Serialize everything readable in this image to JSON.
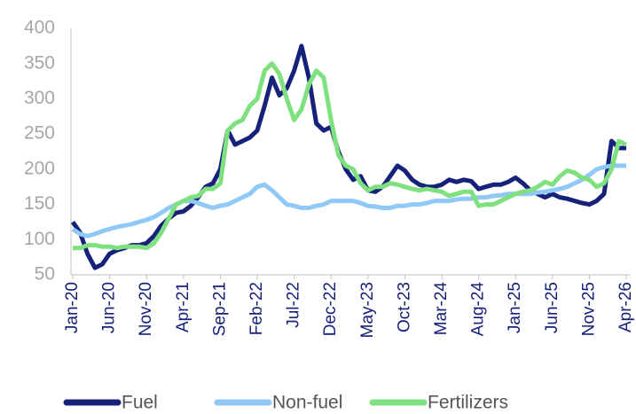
{
  "chart_data": {
    "type": "line",
    "categories": [
      "Jan-20",
      null,
      null,
      null,
      null,
      "Jun-20",
      null,
      null,
      null,
      null,
      "Nov-20",
      null,
      null,
      null,
      null,
      "Apr-21",
      null,
      null,
      null,
      null,
      "Sep-21",
      null,
      null,
      null,
      null,
      "Feb-22",
      null,
      null,
      null,
      null,
      "Jul-22",
      null,
      null,
      null,
      null,
      "Dec-22",
      null,
      null,
      null,
      null,
      "May-23",
      null,
      null,
      null,
      null,
      "Oct-23",
      null,
      null,
      null,
      null,
      "Mar-24",
      null,
      null,
      null,
      null,
      "Aug-24",
      null,
      null,
      null,
      null,
      "Jan-25",
      null,
      null,
      null,
      null,
      "Jun-25",
      null,
      null,
      null,
      null,
      "Nov-25",
      null,
      null,
      null,
      null,
      "Apr-26"
    ],
    "series": [
      {
        "name": "Fuel",
        "color": "#16217a",
        "values": [
          125,
          110,
          80,
          60,
          65,
          80,
          85,
          88,
          92,
          92,
          95,
          105,
          120,
          130,
          138,
          140,
          148,
          160,
          175,
          180,
          200,
          255,
          235,
          240,
          245,
          255,
          290,
          330,
          305,
          315,
          340,
          375,
          330,
          265,
          255,
          260,
          225,
          200,
          185,
          190,
          170,
          168,
          175,
          190,
          205,
          198,
          185,
          178,
          175,
          175,
          178,
          185,
          182,
          185,
          183,
          172,
          175,
          178,
          178,
          182,
          188,
          180,
          170,
          165,
          160,
          165,
          160,
          158,
          155,
          152,
          150,
          155,
          165,
          240,
          230,
          230
        ]
      },
      {
        "name": "Non-fuel",
        "color": "#90c8f6",
        "values": [
          115,
          108,
          105,
          108,
          112,
          115,
          118,
          120,
          122,
          125,
          128,
          132,
          138,
          145,
          150,
          155,
          155,
          152,
          148,
          145,
          148,
          150,
          155,
          160,
          165,
          175,
          178,
          170,
          160,
          150,
          148,
          145,
          145,
          148,
          150,
          155,
          155,
          155,
          155,
          152,
          148,
          147,
          145,
          145,
          148,
          148,
          150,
          150,
          152,
          155,
          155,
          155,
          157,
          158,
          158,
          160,
          160,
          162,
          163,
          165,
          165,
          165,
          165,
          167,
          168,
          170,
          172,
          175,
          180,
          185,
          192,
          200,
          203,
          205,
          205,
          205
        ]
      },
      {
        "name": "Fertilizers",
        "color": "#7fe07f",
        "values": [
          88,
          88,
          92,
          92,
          90,
          90,
          88,
          90,
          90,
          90,
          88,
          95,
          110,
          130,
          150,
          155,
          160,
          162,
          172,
          172,
          180,
          255,
          265,
          270,
          290,
          300,
          340,
          350,
          335,
          300,
          270,
          285,
          320,
          340,
          330,
          270,
          220,
          205,
          200,
          180,
          170,
          175,
          175,
          180,
          178,
          175,
          172,
          170,
          172,
          170,
          168,
          162,
          165,
          168,
          168,
          148,
          150,
          150,
          155,
          160,
          165,
          168,
          170,
          175,
          182,
          178,
          190,
          198,
          195,
          188,
          185,
          175,
          180,
          200,
          240,
          235
        ]
      }
    ],
    "ylim": [
      50,
      400
    ],
    "yticks": [
      50,
      100,
      150,
      200,
      250,
      300,
      350,
      400
    ]
  }
}
